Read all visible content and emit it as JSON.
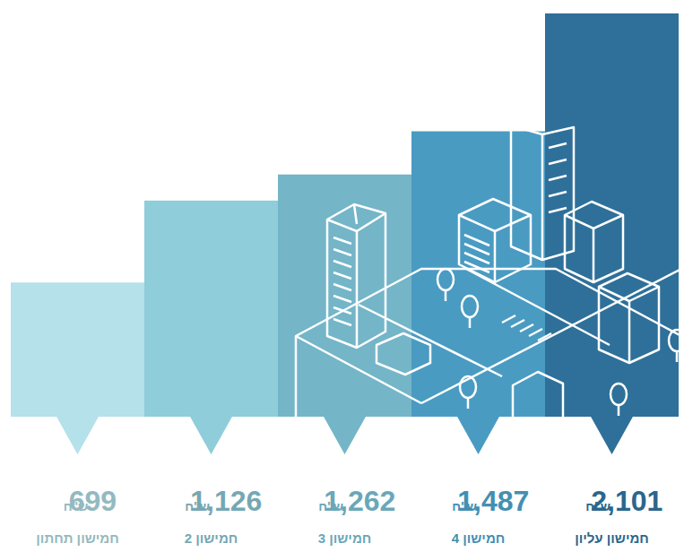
{
  "chart_data": {
    "type": "bar",
    "categories": [
      "חמישון תחתון",
      "חמישון 2",
      "חמישון 3",
      "חמישון 4",
      "חמישון עליון"
    ],
    "values": [
      699,
      1126,
      1262,
      1487,
      2101
    ],
    "value_labels": [
      "699",
      "1,126",
      "1,262",
      "1,487",
      "2,101"
    ],
    "unit": "ש\"ח",
    "colors": [
      "#b4e1ea",
      "#8fcdda",
      "#74b5c8",
      "#4a9bc2",
      "#2e7099"
    ],
    "ylim": [
      0,
      2101
    ],
    "data_labels": true,
    "tick_labels": "x",
    "grid": false
  }
}
